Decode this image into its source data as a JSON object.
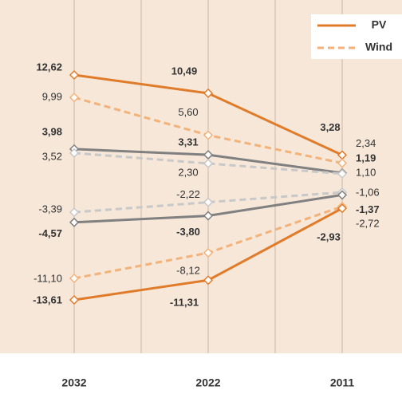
{
  "chart_data": {
    "type": "line",
    "categories": [
      "2032",
      "2022",
      "2011"
    ],
    "series": [
      {
        "name": "PV",
        "color": "#e07b2a",
        "dashed": false,
        "values": [
          12.62,
          10.49,
          3.28
        ],
        "value_labels": [
          "12,62",
          "10,49",
          "3,28"
        ]
      },
      {
        "name": "Wind",
        "color": "#f2b27a",
        "dashed": true,
        "values": [
          9.99,
          5.6,
          2.34
        ],
        "value_labels": [
          "9,99",
          "5,60",
          "2,34"
        ]
      },
      {
        "color": "#808080",
        "dashed": false,
        "values": [
          3.98,
          3.31,
          1.19
        ],
        "value_labels": [
          "3,98",
          "3,31",
          "1,19"
        ]
      },
      {
        "color": "#c8c8c8",
        "dashed": true,
        "values": [
          3.52,
          2.3,
          1.1
        ],
        "value_labels": [
          "3,52",
          "2,30",
          "1,10"
        ]
      },
      {
        "color": "#c8c8c8",
        "dashed": true,
        "values": [
          -3.39,
          -2.22,
          -1.06
        ],
        "value_labels": [
          "-3,39",
          "-2,22",
          "-1,06"
        ]
      },
      {
        "color": "#808080",
        "dashed": false,
        "values": [
          -4.57,
          -3.8,
          -1.37
        ],
        "value_labels": [
          "-4,57",
          "-3,80",
          "-1,37"
        ]
      },
      {
        "color": "#f2b27a",
        "dashed": true,
        "values": [
          -11.1,
          -8.12,
          -2.72
        ],
        "value_labels": [
          "-11,10",
          "-8,12",
          "-2,72"
        ]
      },
      {
        "color": "#e07b2a",
        "dashed": false,
        "values": [
          -13.61,
          -11.31,
          -2.93
        ],
        "value_labels": [
          "-13,61",
          "-11,31",
          "-2,93"
        ]
      }
    ]
  }
}
